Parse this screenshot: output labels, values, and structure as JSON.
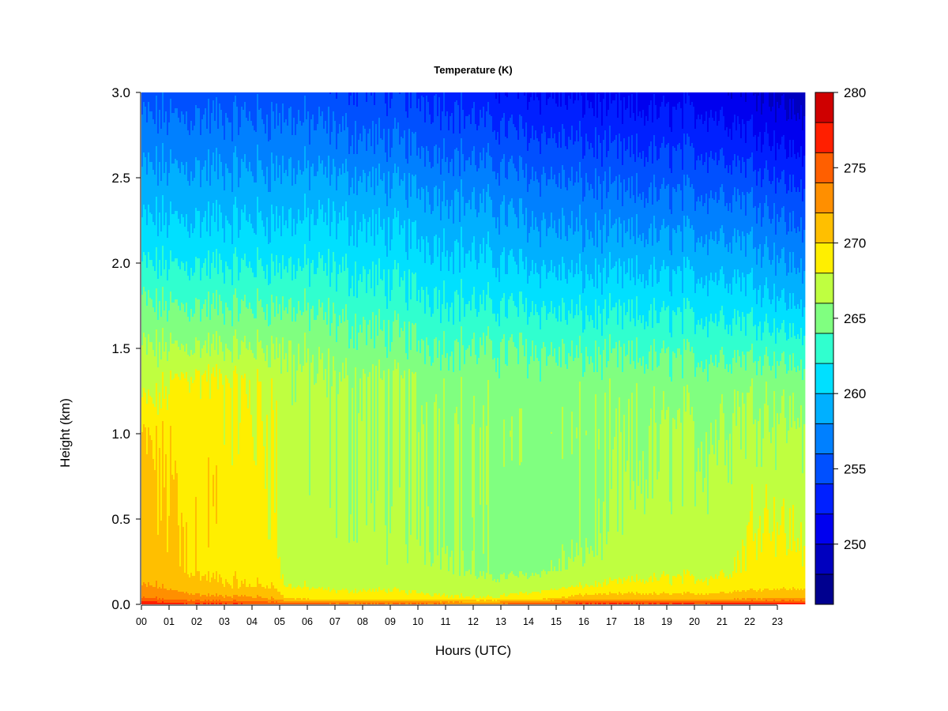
{
  "chart_data": {
    "type": "heatmap",
    "title": "Temperature (K)",
    "xlabel": "Hours (UTC)",
    "ylabel": "Height (km)",
    "x_ticks": [
      "00",
      "01",
      "02",
      "03",
      "04",
      "05",
      "06",
      "07",
      "08",
      "09",
      "10",
      "11",
      "12",
      "13",
      "14",
      "15",
      "16",
      "17",
      "18",
      "19",
      "20",
      "21",
      "22",
      "23"
    ],
    "x_range": [
      0,
      24
    ],
    "y_ticks": [
      "0.0",
      "0.5",
      "1.0",
      "1.5",
      "2.0",
      "2.5",
      "3.0"
    ],
    "y_range": [
      0,
      3.0
    ],
    "colorbar": {
      "ticks": [
        "250",
        "255",
        "260",
        "265",
        "270",
        "275",
        "280"
      ],
      "range": [
        246,
        280
      ],
      "levels": [
        246,
        248,
        250,
        252,
        254,
        256,
        258,
        260,
        262,
        264,
        266,
        268,
        270,
        272,
        274,
        276,
        278,
        280
      ],
      "colors": [
        "#00008F",
        "#0000BF",
        "#0000EF",
        "#0020FF",
        "#0050FF",
        "#0080FF",
        "#00B0FF",
        "#00E0FF",
        "#30FFCF",
        "#80FF80",
        "#BFFF40",
        "#FFEF00",
        "#FFBF00",
        "#FF8F00",
        "#FF5F00",
        "#FF1F00",
        "#CF0000",
        "#800000"
      ]
    },
    "profile_times": [
      0,
      0.5,
      1.5,
      2.5,
      3.5,
      4.8,
      5.2,
      7,
      9,
      11,
      12.5,
      14,
      16,
      17.5,
      19,
      20.5,
      21.5,
      22.5,
      23.5,
      24
    ],
    "heights_km": [
      0,
      0.03,
      0.1,
      0.2,
      0.4,
      0.7,
      1.0,
      1.3,
      1.5,
      1.8,
      2.1,
      2.4,
      2.7,
      3.0
    ],
    "temperature_k": [
      [
        277,
        274,
        272,
        271,
        270.5,
        271,
        270,
        267,
        266,
        264,
        261,
        259,
        257,
        255
      ],
      [
        277,
        274,
        272,
        271,
        270.5,
        270.5,
        269.5,
        267,
        266,
        263.5,
        261,
        259,
        257,
        255
      ],
      [
        276,
        273,
        271,
        270,
        270,
        269.5,
        269.5,
        268.5,
        266,
        263.5,
        261,
        259,
        257,
        255
      ],
      [
        276,
        272.5,
        270.5,
        269.5,
        269.5,
        269.5,
        269,
        268.5,
        266,
        263.5,
        261,
        259,
        257,
        255
      ],
      [
        276,
        272.5,
        270,
        269.5,
        269,
        269,
        268.5,
        268,
        266,
        263.5,
        261,
        259,
        257,
        255
      ],
      [
        275,
        272,
        270,
        269,
        268.5,
        268.5,
        268,
        267.5,
        266,
        263.5,
        261,
        259,
        257,
        255
      ],
      [
        275,
        270,
        268,
        267,
        267,
        267,
        267,
        266.5,
        266,
        263.5,
        261,
        259,
        257,
        255
      ],
      [
        274,
        269,
        267.5,
        267,
        266.5,
        266.5,
        266.5,
        266,
        265,
        263,
        261,
        259,
        256.5,
        254.5
      ],
      [
        274,
        269,
        267.5,
        266.5,
        266.5,
        266,
        266,
        266,
        264.5,
        262.5,
        260.5,
        258.5,
        256,
        254
      ],
      [
        274,
        268.5,
        267,
        266.5,
        266,
        266,
        266,
        265.5,
        264,
        262,
        260,
        258,
        255.5,
        253.5
      ],
      [
        273,
        268,
        266.5,
        265.5,
        265.5,
        265.5,
        265.5,
        265,
        264,
        261.5,
        259.5,
        257.5,
        255,
        252.5
      ],
      [
        275,
        269,
        267,
        265.5,
        265,
        265,
        265.5,
        265,
        264,
        261.5,
        259,
        257,
        254.5,
        252
      ],
      [
        276,
        271,
        268,
        266.5,
        265.5,
        265,
        265.5,
        265,
        263.5,
        261,
        258.5,
        256.5,
        254,
        251.5
      ],
      [
        276,
        271,
        268.5,
        267,
        266.5,
        266,
        265.5,
        265,
        263.5,
        261,
        258.5,
        256,
        253.5,
        251
      ],
      [
        276,
        271,
        268.5,
        267.5,
        267,
        266.5,
        266,
        265,
        263.5,
        261,
        258.5,
        256,
        253.5,
        251
      ],
      [
        276,
        271,
        268.5,
        267.5,
        267,
        266.5,
        266,
        265,
        263.5,
        261,
        258.5,
        256,
        253.5,
        251
      ],
      [
        277,
        271.5,
        269,
        268,
        267.5,
        267,
        266.5,
        265.5,
        263.5,
        261,
        258.5,
        256,
        253,
        250.5
      ],
      [
        277,
        272,
        269.5,
        269,
        268.5,
        267.5,
        266.5,
        265.5,
        263.5,
        260.5,
        258,
        255.5,
        252.5,
        250
      ],
      [
        277,
        272,
        269.5,
        268.5,
        268,
        267,
        266.5,
        265,
        263,
        259.5,
        257,
        254.5,
        251.5,
        249
      ],
      [
        277,
        272,
        269.5,
        268.5,
        268,
        267,
        266.5,
        265,
        263,
        259.5,
        257,
        254.5,
        251.5,
        249
      ]
    ]
  }
}
